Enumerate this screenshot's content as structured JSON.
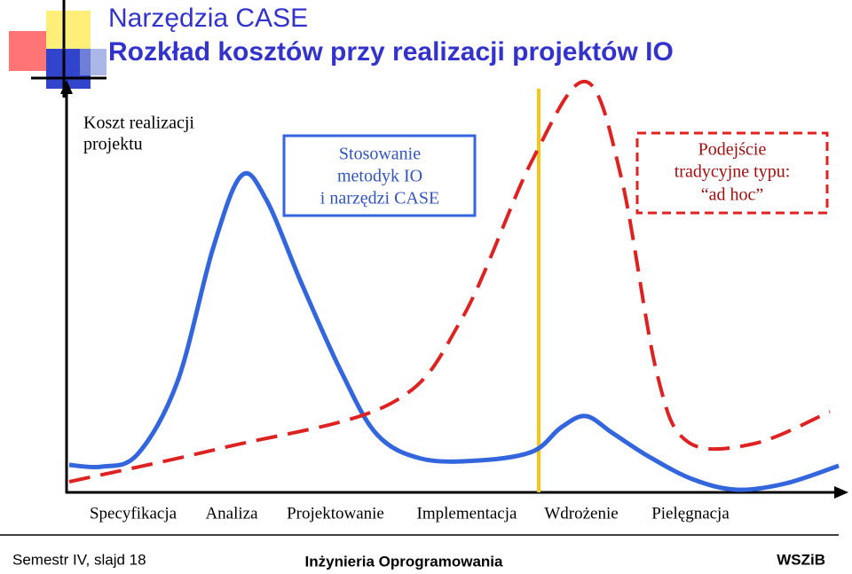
{
  "header": {
    "title": "Narzędzia CASE",
    "subtitle": "Rozkład kosztów przy realizacji projektów IO"
  },
  "y_axis_label": [
    "Koszt realizacji",
    "projektu"
  ],
  "box_case": [
    "Stosowanie",
    "metodyk IO",
    "i narzędzi CASE"
  ],
  "box_adhoc": [
    "Podejście",
    "tradycyjne typu:",
    "“ad hoc”"
  ],
  "phases": [
    "Specyfikacja",
    "Analiza",
    "Projektowanie",
    "Implementacja",
    "Wdrożenie",
    "Pielęgnacja"
  ],
  "footer": {
    "left": "Semestr IV, slajd 18",
    "center": "Inżynieria Oprogramowania",
    "right": "WSZiB"
  }
}
